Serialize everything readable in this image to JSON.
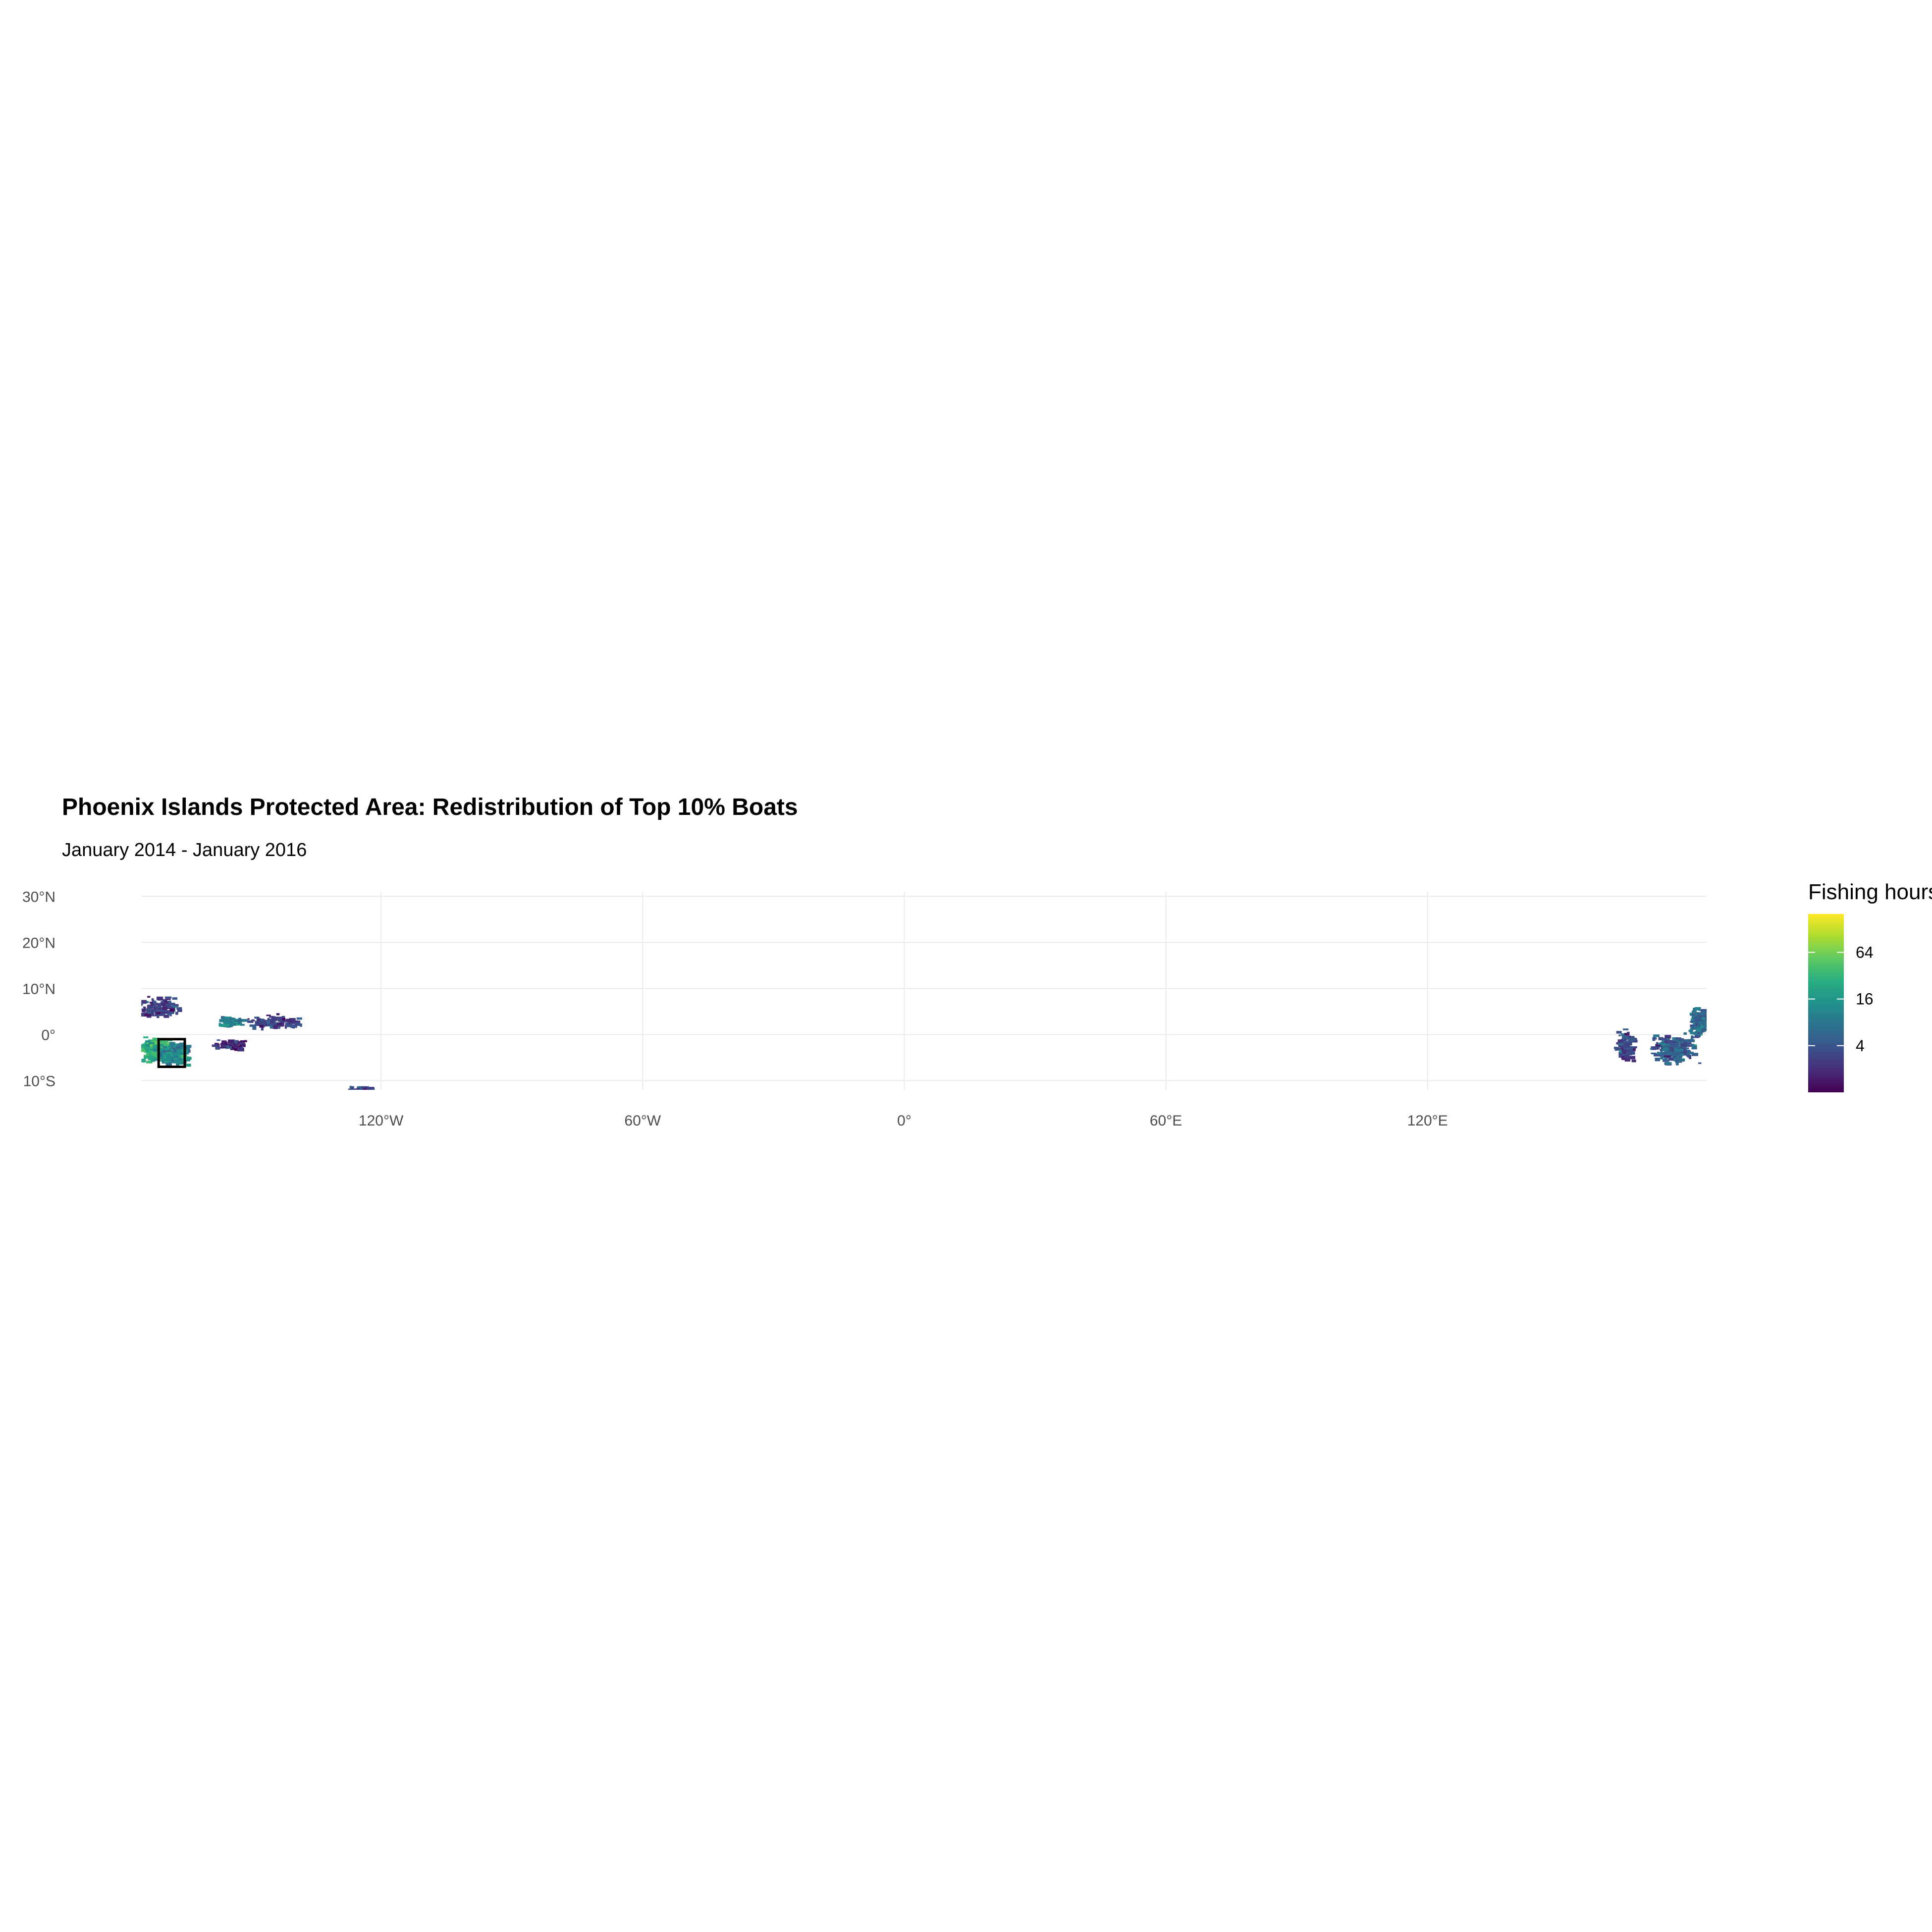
{
  "map": {
    "title": "Phoenix Islands Protected Area: Redistribution of Top 10% Boats",
    "subtitle": "January 2014 - January 2016",
    "colors": {
      "background": "#ffffff",
      "grid": "#ebebeb",
      "axis_text": "#4d4d4d",
      "boundary": "#000000",
      "low": "#440154",
      "high": "#fde725"
    },
    "extent": {
      "lon_min": -175,
      "lon_max": 184,
      "lat_min": -12,
      "lat_max": 31
    },
    "lat_ticks": [
      {
        "value": 30,
        "label": "30°N"
      },
      {
        "value": 20,
        "label": "20°N"
      },
      {
        "value": 10,
        "label": "10°N"
      },
      {
        "value": 0,
        "label": "0°"
      },
      {
        "value": -10,
        "label": "10°S"
      }
    ],
    "lon_ticks": [
      {
        "value": -120,
        "label": "120°W"
      },
      {
        "value": -60,
        "label": "60°W"
      },
      {
        "value": 0,
        "label": "0°"
      },
      {
        "value": 60,
        "label": "60°E"
      },
      {
        "value": 120,
        "label": "120°E"
      }
    ],
    "protected_area": {
      "lon_min": -171,
      "lon_max": -165,
      "lat_min": -7,
      "lat_max": -1
    },
    "fishing_clusters": [
      {
        "lon": -172,
        "lat": -3,
        "spread_lon": 5,
        "spread_lat": 3,
        "n": 300,
        "hours": 30
      },
      {
        "lon": -168,
        "lat": -4,
        "spread_lon": 5,
        "spread_lat": 3,
        "n": 240,
        "hours": 12
      },
      {
        "lon": -171,
        "lat": 6,
        "spread_lon": 6,
        "spread_lat": 3,
        "n": 120,
        "hours": 3
      },
      {
        "lon": -155,
        "lat": 3,
        "spread_lon": 3,
        "spread_lat": 1.5,
        "n": 80,
        "hours": 10
      },
      {
        "lon": -145,
        "lat": 3,
        "spread_lon": 8,
        "spread_lat": 2,
        "n": 100,
        "hours": 3
      },
      {
        "lon": -155,
        "lat": -2,
        "spread_lon": 6,
        "spread_lat": 1.5,
        "n": 50,
        "hours": 2
      },
      {
        "lon": -125,
        "lat": -12,
        "spread_lon": 4,
        "spread_lat": 1.5,
        "n": 60,
        "hours": 3
      },
      {
        "lon": 176,
        "lat": -3,
        "spread_lon": 7,
        "spread_lat": 4,
        "n": 240,
        "hours": 5
      },
      {
        "lon": 182,
        "lat": 3,
        "spread_lon": 3,
        "spread_lat": 4,
        "n": 150,
        "hours": 6
      },
      {
        "lon": 165,
        "lat": -2,
        "spread_lon": 3,
        "spread_lat": 4,
        "n": 90,
        "hours": 3
      }
    ],
    "legend": {
      "title": "Fishing hours",
      "min": 1,
      "max": 200,
      "breaks": [
        {
          "value": 64,
          "label": "64"
        },
        {
          "value": 16,
          "label": "16"
        },
        {
          "value": 4,
          "label": "4"
        }
      ]
    }
  }
}
